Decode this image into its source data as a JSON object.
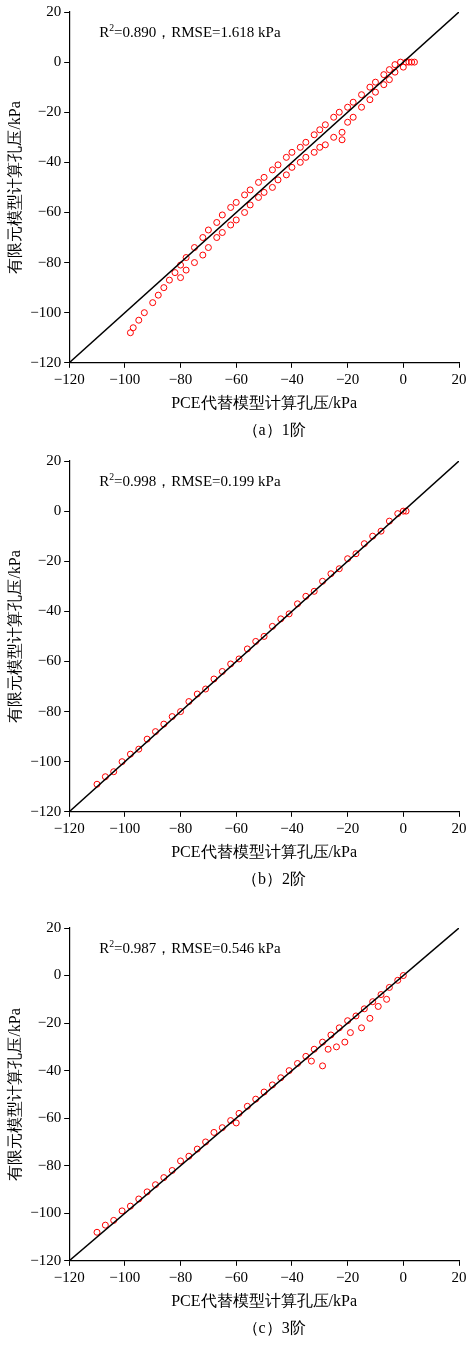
{
  "chart_data": [
    {
      "type": "scatter",
      "xlabel": "PCE代替模型计算孔压/kPa",
      "ylabel": "有限元模型计算孔压/kPa",
      "xlim": [
        -120,
        20
      ],
      "ylim": [
        -120,
        20
      ],
      "xticks": [
        -120,
        -100,
        -80,
        -60,
        -40,
        -20,
        0,
        20
      ],
      "yticks": [
        -120,
        -100,
        -80,
        -60,
        -40,
        -20,
        0,
        20
      ],
      "grid": false,
      "legend": false,
      "marker": "circle",
      "annotations": [
        "R$^{2}$=0.890，RMSE=1.618 kPa",
        "（a）1阶"
      ],
      "series": [
        {
          "color": "#ff0000",
          "x": [
            -98,
            -97,
            -95,
            -93,
            -90,
            -88,
            -86,
            -84,
            -82,
            -80,
            -80,
            -78,
            -78,
            -75,
            -75,
            -72,
            -72,
            -70,
            -70,
            -67,
            -67,
            -65,
            -65,
            -62,
            -62,
            -60,
            -60,
            -57,
            -57,
            -55,
            -55,
            -52,
            -52,
            -50,
            -50,
            -47,
            -47,
            -45,
            -45,
            -42,
            -42,
            -40,
            -40,
            -37,
            -37,
            -35,
            -35,
            -32,
            -32,
            -30,
            -30,
            -28,
            -28,
            -25,
            -25,
            -23,
            -22,
            -22,
            -20,
            -20,
            -18,
            -18,
            -15,
            -15,
            -12,
            -12,
            -10,
            -10,
            -7,
            -7,
            -5,
            -5,
            -3,
            -3,
            -1,
            0,
            1,
            2,
            3,
            4
          ],
          "values": [
            -108,
            -106,
            -103,
            -100,
            -96,
            -93,
            -90,
            -87,
            -84,
            -81,
            -86,
            -78,
            -83,
            -74,
            -80,
            -70,
            -77,
            -67,
            -74,
            -64,
            -70,
            -61,
            -68,
            -58,
            -65,
            -56,
            -63,
            -53,
            -60,
            -51,
            -57,
            -48,
            -54,
            -46,
            -52,
            -43,
            -50,
            -41,
            -47,
            -38,
            -45,
            -36,
            -42,
            -34,
            -40,
            -32,
            -38,
            -29,
            -36,
            -27,
            -34,
            -25,
            -33,
            -22,
            -30,
            -20,
            -31,
            -28,
            -18,
            -24,
            -16,
            -22,
            -13,
            -18,
            -10,
            -15,
            -8,
            -12,
            -5,
            -9,
            -3,
            -7,
            -1,
            -4,
            0,
            -2,
            0,
            0,
            0,
            0
          ]
        },
        {
          "type": "line",
          "marker": "none",
          "color": "#000000",
          "x": [
            -120,
            20
          ],
          "values": [
            -120,
            20
          ]
        }
      ]
    },
    {
      "type": "scatter",
      "xlabel": "PCE代替模型计算孔压/kPa",
      "ylabel": "有限元模型计算孔压/kPa",
      "xlim": [
        -120,
        20
      ],
      "ylim": [
        -120,
        20
      ],
      "xticks": [
        -120,
        -100,
        -80,
        -60,
        -40,
        -20,
        0,
        20
      ],
      "yticks": [
        -120,
        -100,
        -80,
        -60,
        -40,
        -20,
        0,
        20
      ],
      "grid": false,
      "legend": false,
      "marker": "circle",
      "annotations": [
        "R$^{2}$=0.998，RMSE=0.199 kPa",
        "（b）2阶"
      ],
      "series": [
        {
          "color": "#ff0000",
          "x": [
            -110,
            -107,
            -104,
            -101,
            -98,
            -95,
            -92,
            -89,
            -86,
            -83,
            -80,
            -77,
            -74,
            -71,
            -68,
            -65,
            -62,
            -59,
            -56,
            -53,
            -50,
            -47,
            -44,
            -41,
            -38,
            -35,
            -32,
            -29,
            -26,
            -23,
            -20,
            -17,
            -14,
            -11,
            -8,
            -5,
            -2,
            0,
            1
          ],
          "values": [
            -109,
            -106,
            -104,
            -100,
            -97,
            -95,
            -91,
            -88,
            -85,
            -82,
            -80,
            -76,
            -73,
            -71,
            -67,
            -64,
            -61,
            -59,
            -55,
            -52,
            -50,
            -46,
            -43,
            -41,
            -37,
            -34,
            -32,
            -28,
            -25,
            -23,
            -19,
            -17,
            -13,
            -10,
            -8,
            -4,
            -1,
            0,
            0
          ]
        },
        {
          "type": "line",
          "marker": "none",
          "color": "#000000",
          "x": [
            -120,
            20
          ],
          "values": [
            -120,
            20
          ]
        }
      ]
    },
    {
      "type": "scatter",
      "xlabel": "PCE代替模型计算孔压/kPa",
      "ylabel": "有限元模型计算孔压/kPa",
      "xlim": [
        -120,
        20
      ],
      "ylim": [
        -120,
        20
      ],
      "xticks": [
        -120,
        -100,
        -80,
        -60,
        -40,
        -20,
        0,
        20
      ],
      "yticks": [
        -120,
        -100,
        -80,
        -60,
        -40,
        -20,
        0,
        20
      ],
      "grid": false,
      "legend": false,
      "marker": "circle",
      "annotations": [
        "R$^{2}$=0.987，RMSE=0.546 kPa",
        "（c）3阶"
      ],
      "series": [
        {
          "color": "#ff0000",
          "x": [
            -110,
            -107,
            -104,
            -101,
            -98,
            -95,
            -92,
            -89,
            -86,
            -83,
            -80,
            -77,
            -74,
            -71,
            -68,
            -65,
            -62,
            -60,
            -59,
            -56,
            -53,
            -50,
            -47,
            -44,
            -41,
            -38,
            -35,
            -33,
            -32,
            -29,
            -29,
            -27,
            -26,
            -24,
            -23,
            -21,
            -20,
            -19,
            -17,
            -15,
            -14,
            -12,
            -11,
            -9,
            -8,
            -6,
            -5,
            -2,
            0
          ],
          "values": [
            -108,
            -105,
            -103,
            -99,
            -97,
            -94,
            -91,
            -88,
            -85,
            -82,
            -78,
            -76,
            -73,
            -70,
            -66,
            -64,
            -61,
            -62,
            -58,
            -55,
            -52,
            -49,
            -46,
            -43,
            -40,
            -37,
            -34,
            -36,
            -31,
            -38,
            -28,
            -31,
            -25,
            -30,
            -22,
            -28,
            -19,
            -24,
            -17,
            -22,
            -14,
            -18,
            -11,
            -13,
            -8,
            -10,
            -5,
            -2,
            0
          ]
        },
        {
          "type": "line",
          "marker": "none",
          "color": "#000000",
          "x": [
            -120,
            20
          ],
          "values": [
            -120,
            20
          ]
        }
      ]
    }
  ]
}
